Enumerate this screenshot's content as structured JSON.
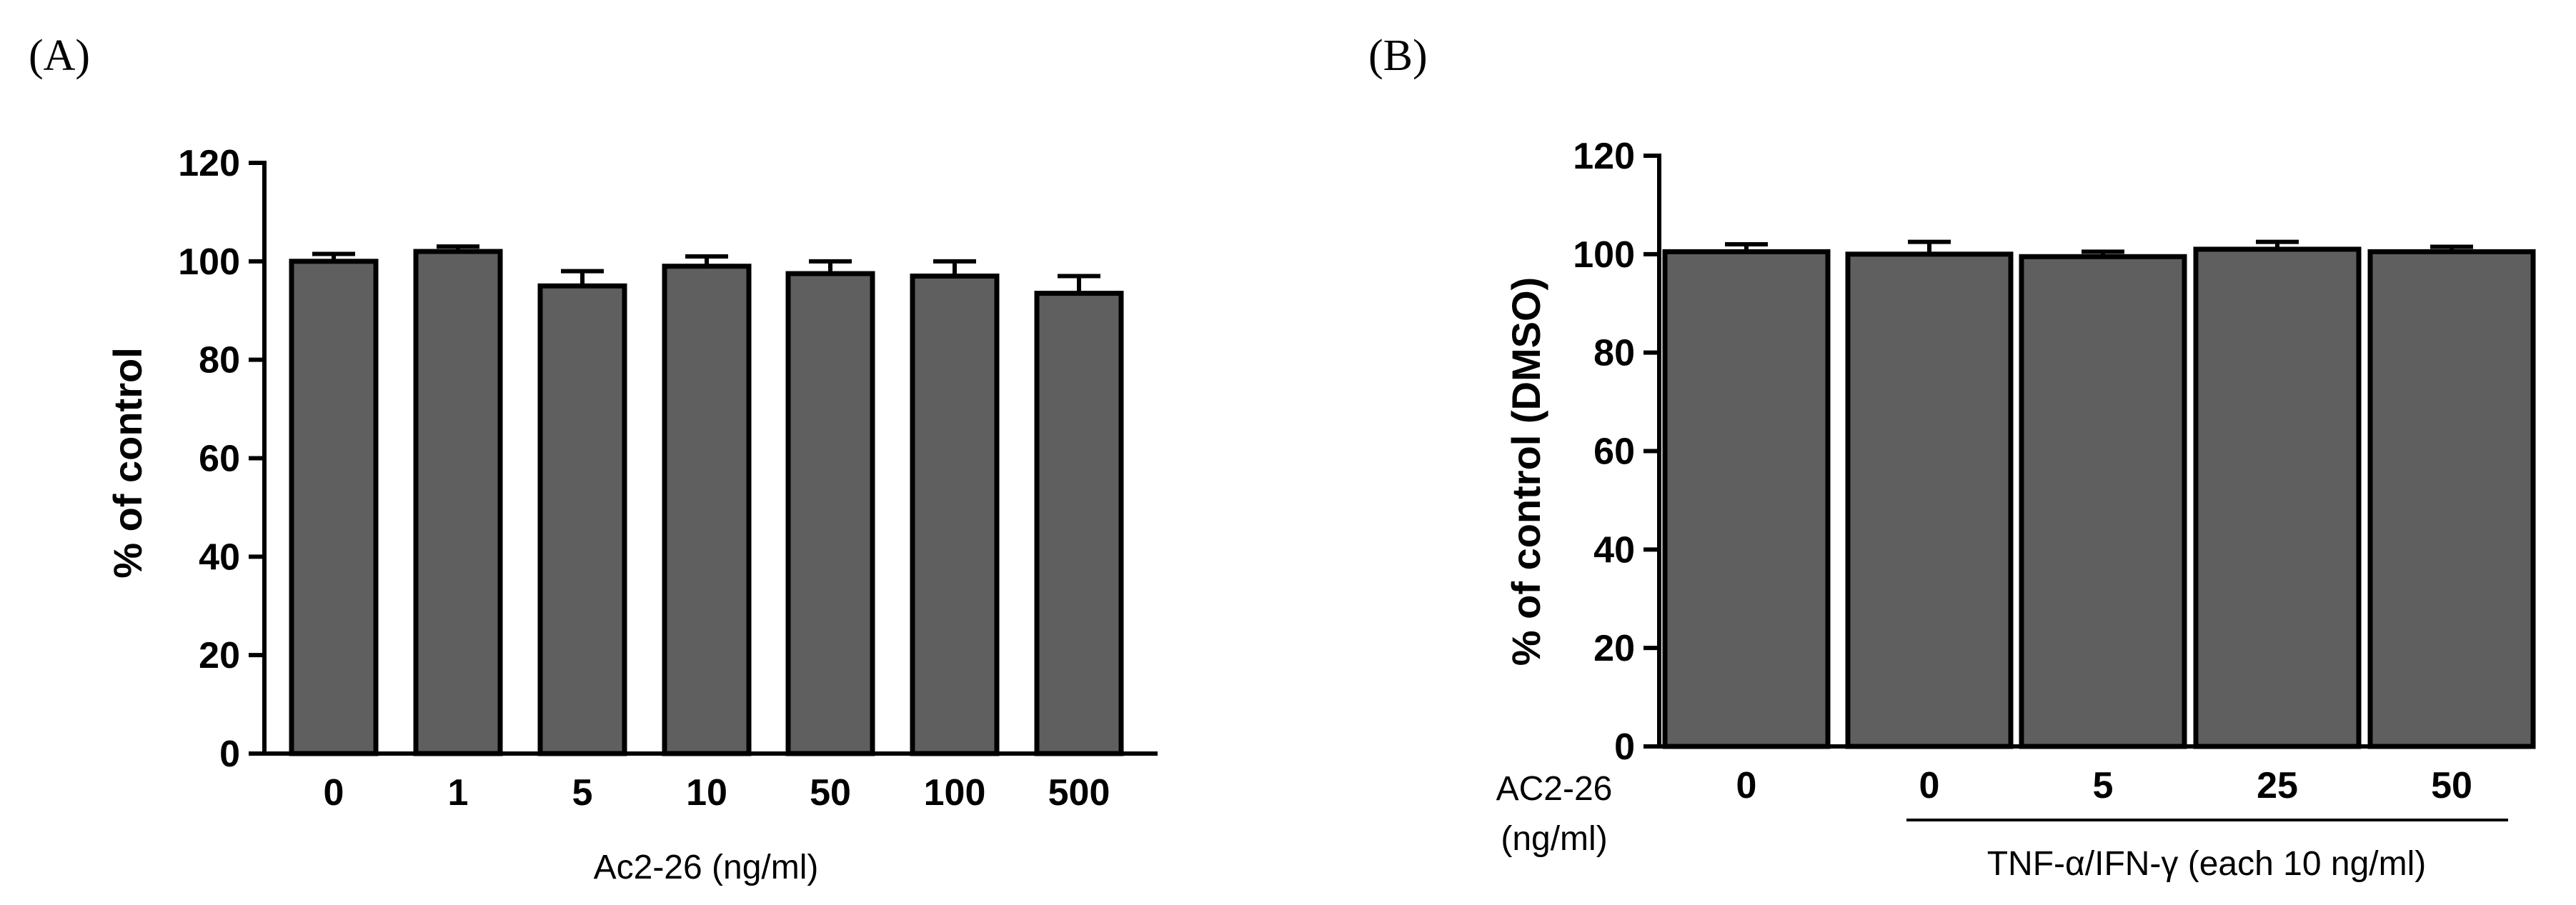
{
  "colors": {
    "bar_fill": "#5f5f5f",
    "axis": "#000000",
    "background": "#ffffff"
  },
  "chart_data": [
    {
      "panel": "(A)",
      "type": "bar",
      "categories": [
        "0",
        "1",
        "5",
        "10",
        "50",
        "100",
        "500"
      ],
      "values": [
        100,
        102,
        95,
        99,
        97.5,
        97,
        93.5
      ],
      "errors": [
        1.5,
        1,
        3,
        2,
        2.5,
        3,
        3.5
      ],
      "title": "",
      "xlabel": "Ac2-26 (ng/ml)",
      "ylabel": "% of control",
      "ylim": [
        0,
        120
      ],
      "yticks": [
        0,
        20,
        40,
        60,
        80,
        100,
        120
      ],
      "grid": false,
      "legend": "none"
    },
    {
      "panel": "(B)",
      "type": "bar",
      "categories": [
        "0",
        "0",
        "5",
        "25",
        "50"
      ],
      "values": [
        100.5,
        100,
        99.5,
        101,
        100.5
      ],
      "errors": [
        1.5,
        2.5,
        1,
        1.5,
        1
      ],
      "title": "",
      "xlabel_row": "AC2-26",
      "xlabel_unit": "(ng/ml)",
      "group_label": "TNF-α/IFN-γ (each 10 ng/ml)",
      "ylabel": "% of control (DMSO)",
      "ylim": [
        0,
        120
      ],
      "yticks": [
        0,
        20,
        40,
        60,
        80,
        100,
        120
      ],
      "grid": false,
      "legend": "none"
    }
  ]
}
